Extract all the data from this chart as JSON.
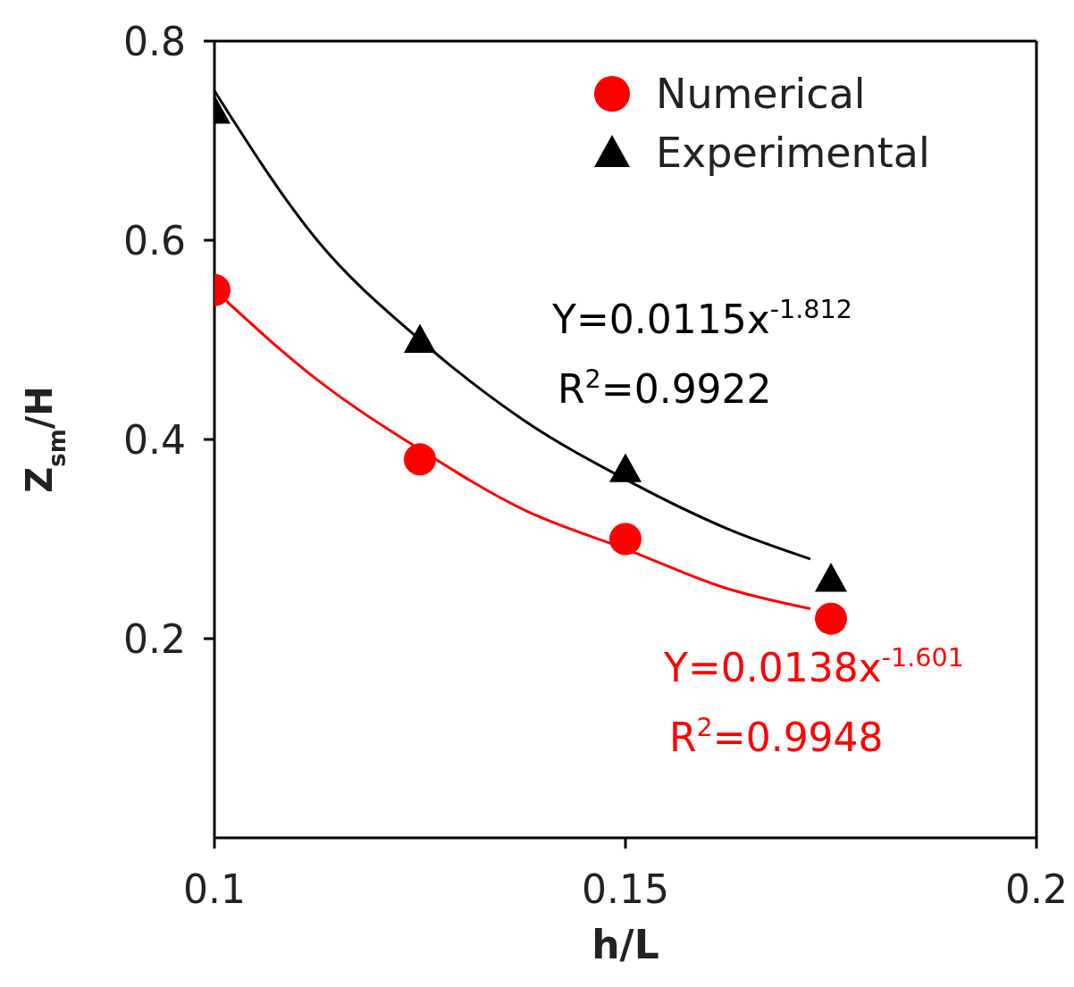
{
  "chart_data": {
    "type": "scatter",
    "xlabel": "h/L",
    "ylabel": "Z$_{sm}$/H",
    "xlim": [
      0.1,
      0.2
    ],
    "xticks": [
      0.1,
      0.15,
      0.2
    ],
    "ylim": [
      0,
      0.8
    ],
    "yticks": [
      0.2,
      0.4,
      0.6,
      0.8
    ],
    "x": [
      0.1,
      0.125,
      0.15,
      0.175
    ],
    "series": [
      {
        "name": "Numerical",
        "color": "#ff0000",
        "marker": "circle",
        "values": [
          0.55,
          0.38,
          0.3,
          0.22
        ]
      },
      {
        "name": "Experimental",
        "color": "#000000",
        "marker": "triangle",
        "values": [
          0.73,
          0.5,
          0.37,
          0.26
        ]
      },
      {
        "type": "line",
        "color": "#000000",
        "marker": "none",
        "x": [
          0.1,
          0.1125,
          0.125,
          0.1375,
          0.15,
          0.1625,
          0.1725
        ],
        "values": [
          0.75,
          0.6,
          0.5,
          0.42,
          0.36,
          0.31,
          0.28
        ]
      },
      {
        "type": "line",
        "color": "#ff0000",
        "marker": "none",
        "x": [
          0.1,
          0.1125,
          0.125,
          0.1375,
          0.15,
          0.1625,
          0.1725
        ],
        "values": [
          0.55,
          0.46,
          0.39,
          0.33,
          0.29,
          0.25,
          0.23
        ]
      }
    ],
    "annotations": [
      "Y=0.0115x$^{-1.812}$",
      "R$^{2}$=0.9922",
      "Y=0.0138x$^{-1.601}$",
      "R$^{2}$=0.9948"
    ],
    "legend": "top right",
    "grid": false
  }
}
